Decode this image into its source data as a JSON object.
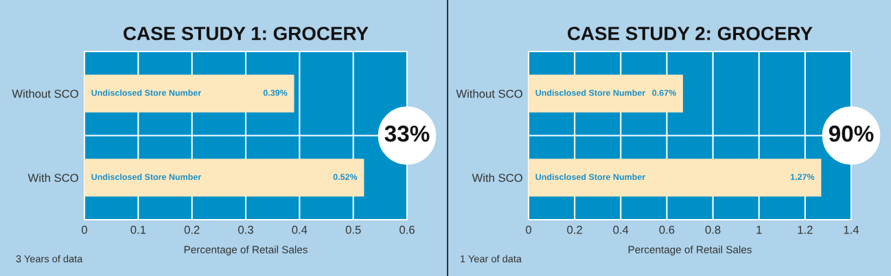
{
  "chart_data": [
    {
      "type": "bar",
      "orientation": "horizontal",
      "title": "CASE STUDY 1: GROCERY",
      "xlabel": "Percentage of Retail Sales",
      "categories": [
        "Without SCO",
        "With SCO"
      ],
      "values": [
        0.39,
        0.52
      ],
      "color": "#fde8bd",
      "value_labels": [
        "0.39%",
        "0.52%"
      ],
      "xlim": [
        0,
        0.6
      ],
      "xticks": [
        0,
        0.1,
        0.2,
        0.3,
        0.4,
        0.5,
        0.6
      ],
      "grid": true,
      "annotations": [
        "Undisclosed Store Number",
        "Undisclosed Store Number",
        "33%",
        "3 Years of data"
      ]
    },
    {
      "type": "bar",
      "orientation": "horizontal",
      "title": "CASE STUDY 2: GROCERY",
      "xlabel": "Percentage of Retail Sales",
      "categories": [
        "Without SCO",
        "With SCO"
      ],
      "values": [
        0.67,
        1.27
      ],
      "color": "#fde8bd",
      "value_labels": [
        "0.67%",
        "1.27%"
      ],
      "xlim": [
        0,
        1.4
      ],
      "xticks": [
        0,
        0.2,
        0.4,
        0.6,
        0.8,
        1,
        1.2,
        1.4
      ],
      "grid": true,
      "annotations": [
        "Undisclosed Store Number",
        "Undisclosed Store Number",
        "90%",
        "1 Year of data"
      ]
    }
  ]
}
